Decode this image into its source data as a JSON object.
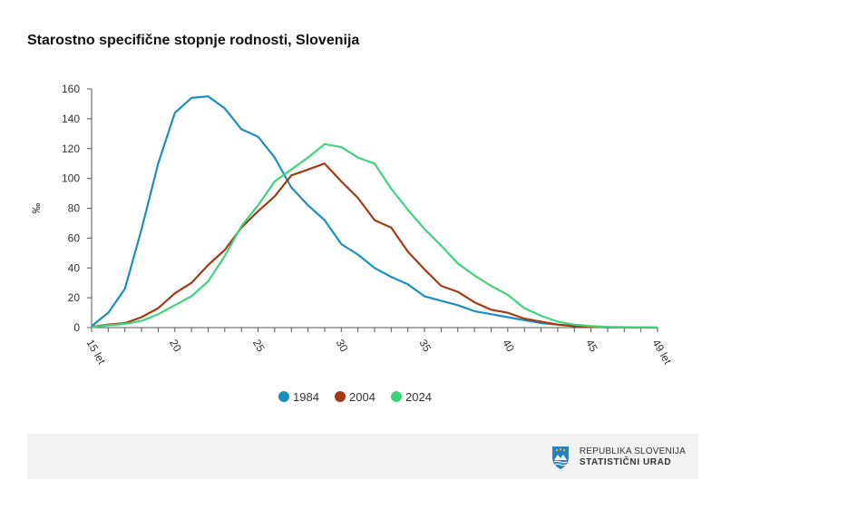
{
  "title": "Starostno specifične stopnje rodnosti, Slovenija",
  "logo": {
    "line1": "REPUBLIKA SLOVENIJA",
    "line2": "STATISTIČNI URAD"
  },
  "chart_data": {
    "type": "line",
    "title": "Starostno specifične stopnje rodnosti, Slovenija",
    "ylabel": "‰",
    "xlabel": "",
    "ylim": [
      0,
      160
    ],
    "xlim": [
      15,
      49
    ],
    "yticks": [
      0,
      20,
      40,
      60,
      80,
      100,
      120,
      140,
      160
    ],
    "xticks": [
      {
        "value": 15,
        "label": "15 let"
      },
      {
        "value": 20,
        "label": "20"
      },
      {
        "value": 25,
        "label": "25"
      },
      {
        "value": 30,
        "label": "30"
      },
      {
        "value": 35,
        "label": "35"
      },
      {
        "value": 40,
        "label": "40"
      },
      {
        "value": 45,
        "label": "45"
      },
      {
        "value": 49,
        "label": "49 let"
      }
    ],
    "grid": false,
    "legend": "bottom",
    "x": [
      15,
      16,
      17,
      18,
      19,
      20,
      21,
      22,
      23,
      24,
      25,
      26,
      27,
      28,
      29,
      30,
      31,
      32,
      33,
      34,
      35,
      36,
      37,
      38,
      39,
      40,
      41,
      42,
      43,
      44,
      45,
      46,
      47,
      48,
      49
    ],
    "series": [
      {
        "name": "1984",
        "color": "#1a8fbf",
        "values": [
          1,
          10,
          26,
          66,
          110,
          144,
          154,
          155,
          147,
          133,
          128,
          114,
          94,
          82,
          72,
          56,
          49,
          40,
          34,
          29,
          21,
          18,
          15,
          11,
          9,
          7,
          5,
          3,
          2,
          1,
          0.5,
          0.3,
          0.2,
          0.1,
          0
        ]
      },
      {
        "name": "2004",
        "color": "#a23a14",
        "values": [
          0.5,
          2,
          3,
          7,
          13,
          23,
          30,
          42,
          52,
          67,
          78,
          88,
          102,
          106,
          110,
          98,
          87,
          72,
          67,
          51,
          39,
          28,
          24,
          17,
          12,
          10,
          6,
          4,
          2,
          1,
          0.5,
          0.3,
          0.2,
          0.1,
          0
        ]
      },
      {
        "name": "2024",
        "color": "#3fd47a",
        "values": [
          0.3,
          1.5,
          2.5,
          4.5,
          9,
          15,
          21,
          31,
          48,
          68,
          82,
          98,
          106,
          114,
          123,
          121,
          114,
          110,
          93,
          79,
          66,
          55,
          43,
          35,
          28,
          22,
          13,
          8,
          4,
          2,
          1,
          0.5,
          0.3,
          0.2,
          0.1
        ]
      }
    ]
  }
}
